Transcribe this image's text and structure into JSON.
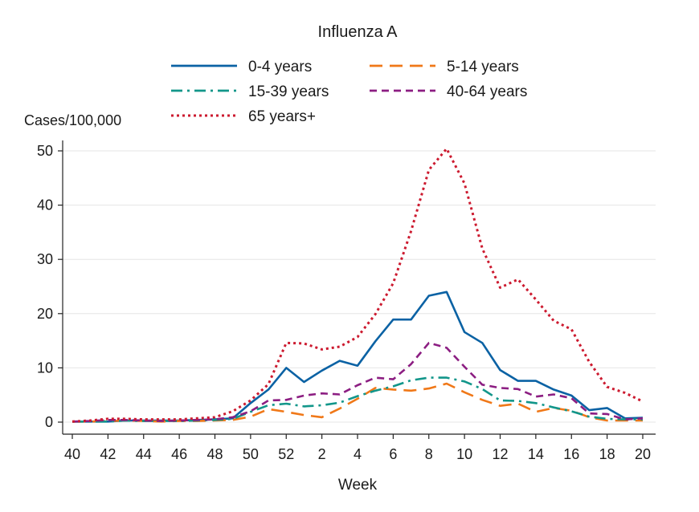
{
  "chart_data": {
    "type": "line",
    "title": "Influenza A",
    "xlabel": "Week",
    "ylabel": "Cases/100,000",
    "ylim": [
      0,
      50
    ],
    "yticks": [
      0,
      10,
      20,
      30,
      40,
      50
    ],
    "grid": "horizontal",
    "legend_position": "top",
    "x": [
      40,
      41,
      42,
      43,
      44,
      45,
      46,
      47,
      48,
      49,
      50,
      51,
      52,
      1,
      2,
      3,
      4,
      5,
      6,
      7,
      8,
      9,
      10,
      11,
      12,
      13,
      14,
      15,
      16,
      17,
      18,
      19,
      20
    ],
    "xtick_labels": [
      "40",
      "42",
      "44",
      "46",
      "48",
      "50",
      "52",
      "2",
      "4",
      "6",
      "8",
      "10",
      "12",
      "14",
      "16",
      "18",
      "20"
    ],
    "series": [
      {
        "name": "0-4 years",
        "color": "#0b62a4",
        "dash": "solid",
        "values": [
          0.1,
          0.1,
          0.1,
          0.3,
          0.3,
          0.3,
          0.3,
          0.4,
          0.5,
          0.7,
          3.5,
          6.0,
          10.0,
          7.4,
          9.5,
          11.3,
          10.4,
          14.9,
          18.9,
          18.9,
          23.3,
          24.0,
          16.6,
          14.6,
          9.6,
          7.6,
          7.6,
          6.0,
          4.9,
          2.2,
          2.6,
          0.7,
          0.8
        ]
      },
      {
        "name": "5-14 years",
        "color": "#f07818",
        "dash": "longdash",
        "values": [
          0.1,
          0.1,
          0.2,
          0.3,
          0.2,
          0.1,
          0.2,
          0.2,
          0.3,
          0.4,
          1.0,
          2.4,
          1.9,
          1.3,
          0.9,
          2.5,
          4.3,
          6.3,
          6.0,
          5.8,
          6.2,
          7.1,
          5.5,
          4.1,
          3.0,
          3.4,
          1.9,
          2.6,
          2.1,
          0.9,
          0.3,
          0.3,
          0.3
        ]
      },
      {
        "name": "15-39 years",
        "color": "#12968a",
        "dash": "dashdot",
        "values": [
          0.1,
          0.1,
          0.1,
          0.3,
          0.2,
          0.2,
          0.2,
          0.3,
          0.4,
          0.6,
          1.9,
          3.1,
          3.4,
          2.9,
          3.1,
          3.6,
          4.8,
          5.8,
          6.6,
          7.7,
          8.2,
          8.2,
          7.5,
          6.1,
          4.0,
          3.9,
          3.5,
          2.7,
          2.0,
          1.0,
          0.6,
          0.5,
          0.5
        ]
      },
      {
        "name": "40-64 years",
        "color": "#8c1e82",
        "dash": "dash",
        "values": [
          0.1,
          0.2,
          0.4,
          0.4,
          0.3,
          0.2,
          0.3,
          0.4,
          0.5,
          0.9,
          2.0,
          4.0,
          4.1,
          4.9,
          5.3,
          5.1,
          6.8,
          8.2,
          7.9,
          10.7,
          14.6,
          13.7,
          10.2,
          6.9,
          6.3,
          6.1,
          4.7,
          5.1,
          4.4,
          1.6,
          1.5,
          0.5,
          0.7
        ]
      },
      {
        "name": "65 years+",
        "color": "#cc1a2f",
        "dash": "dot",
        "values": [
          0.1,
          0.3,
          0.6,
          0.6,
          0.5,
          0.5,
          0.5,
          0.7,
          0.9,
          2.0,
          4.0,
          7.0,
          14.6,
          14.5,
          13.4,
          13.9,
          15.7,
          19.9,
          25.6,
          35.2,
          46.5,
          50.4,
          44.0,
          32.0,
          24.8,
          26.3,
          22.6,
          18.7,
          17.1,
          11.1,
          6.5,
          5.4,
          3.8
        ]
      }
    ]
  }
}
